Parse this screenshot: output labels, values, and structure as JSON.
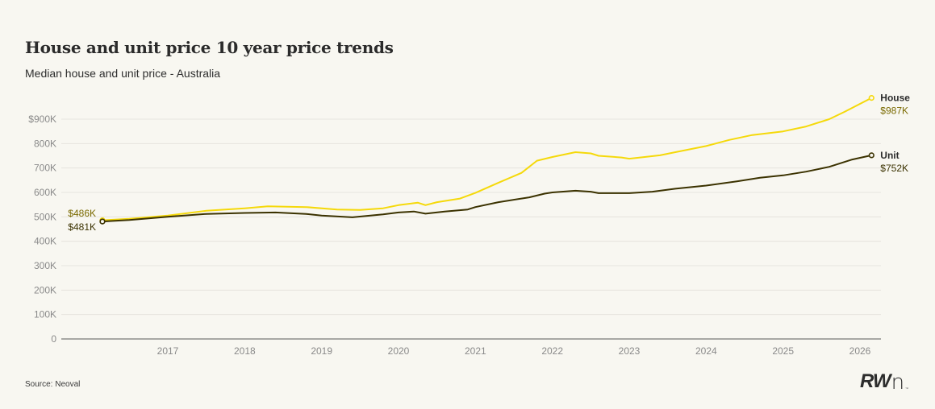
{
  "header": {
    "title": "House and unit price 10 year price trends",
    "subtitle": "Median house and unit price - Australia"
  },
  "footer": {
    "source": "Source: Neoval",
    "logo_text": "RW",
    "logo_suffix": "n",
    "logo_mark": "™"
  },
  "colors": {
    "house": "#f5d90a",
    "unit": "#3b3200",
    "house_label": "#7a6a00",
    "unit_label": "#3b3200",
    "grid": "#e6e4de",
    "axis": "#8e8e8a",
    "background": "#f8f7f1"
  },
  "chart_data": {
    "type": "line",
    "title": "House and unit price 10 year price trends",
    "subtitle": "Median house and unit price - Australia",
    "xlabel": "",
    "ylabel": "",
    "xlim": [
      2016.0,
      2026.3
    ],
    "ylim": [
      0,
      900
    ],
    "y_unit": "thousand AUD",
    "grid": true,
    "legend": "direct-labels-right",
    "x_ticks": [
      2017,
      2018,
      2019,
      2020,
      2021,
      2022,
      2023,
      2024,
      2025,
      2026
    ],
    "x_tick_labels": [
      "2017",
      "2018",
      "2019",
      "2020",
      "2021",
      "2022",
      "2023",
      "2024",
      "2025",
      "2026"
    ],
    "y_ticks": [
      0,
      100,
      200,
      300,
      400,
      500,
      600,
      700,
      800,
      900
    ],
    "y_tick_labels": [
      "0",
      "100K",
      "200K",
      "300K",
      "400K",
      "500K",
      "600K",
      "700K",
      "800K",
      "$900K"
    ],
    "series": [
      {
        "name": "House",
        "start_label": "$486K",
        "end_label": "$987K",
        "x": [
          2016.15,
          2016.5,
          2017.0,
          2017.5,
          2018.0,
          2018.3,
          2018.8,
          2019.2,
          2019.5,
          2019.8,
          2020.0,
          2020.25,
          2020.35,
          2020.5,
          2020.8,
          2021.0,
          2021.3,
          2021.6,
          2021.8,
          2022.0,
          2022.3,
          2022.5,
          2022.6,
          2022.9,
          2023.0,
          2023.2,
          2023.4,
          2023.6,
          2024.0,
          2024.3,
          2024.6,
          2025.0,
          2025.3,
          2025.6,
          2025.8,
          2026.15
        ],
        "values": [
          486,
          492,
          505,
          525,
          535,
          543,
          540,
          530,
          528,
          535,
          548,
          558,
          548,
          560,
          575,
          598,
          640,
          680,
          730,
          745,
          765,
          760,
          750,
          743,
          738,
          745,
          752,
          765,
          790,
          815,
          835,
          850,
          870,
          900,
          930,
          987
        ]
      },
      {
        "name": "Unit",
        "start_label": "$481K",
        "end_label": "$752K",
        "x": [
          2016.15,
          2016.5,
          2017.0,
          2017.5,
          2018.0,
          2018.4,
          2018.8,
          2019.0,
          2019.4,
          2019.8,
          2020.0,
          2020.2,
          2020.35,
          2020.6,
          2020.9,
          2021.0,
          2021.3,
          2021.7,
          2021.9,
          2022.0,
          2022.3,
          2022.5,
          2022.6,
          2023.0,
          2023.3,
          2023.6,
          2024.0,
          2024.4,
          2024.7,
          2025.0,
          2025.3,
          2025.6,
          2025.9,
          2026.15
        ],
        "values": [
          481,
          487,
          500,
          512,
          516,
          518,
          512,
          505,
          498,
          510,
          518,
          522,
          513,
          522,
          530,
          540,
          560,
          580,
          595,
          600,
          607,
          603,
          597,
          597,
          603,
          615,
          628,
          645,
          660,
          670,
          685,
          705,
          735,
          752
        ]
      }
    ]
  }
}
